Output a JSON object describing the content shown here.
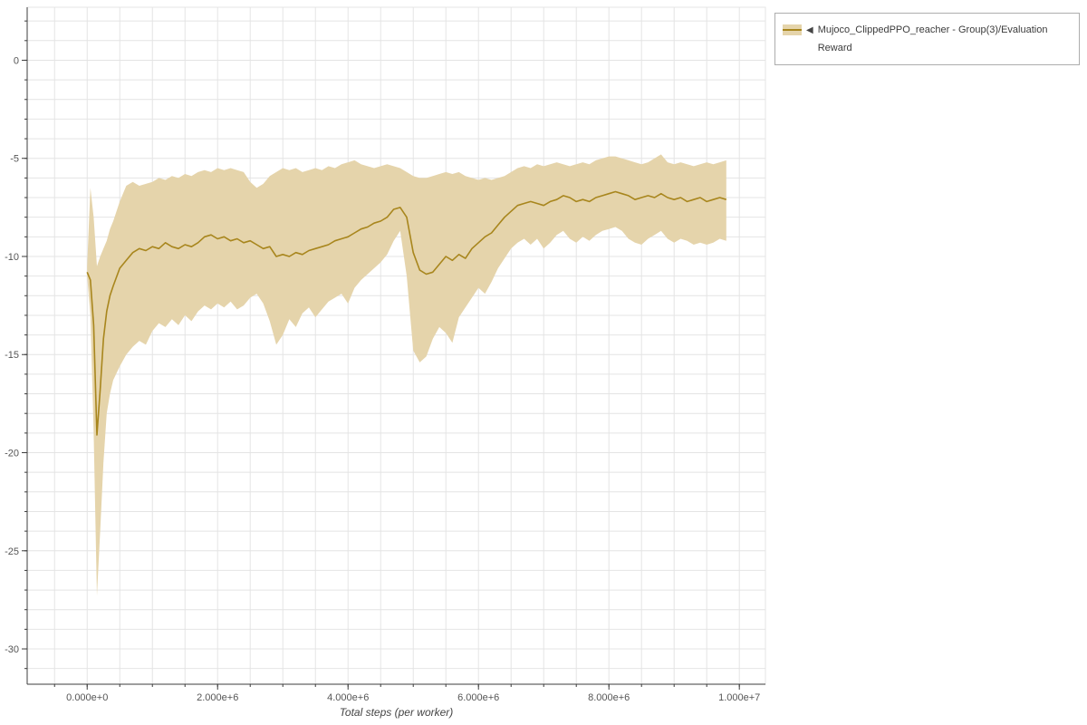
{
  "legend": {
    "marker": "◀",
    "label": "Mujoco_ClippedPPO_reacher - Group(3)/Evaluation Reward"
  },
  "chart_data": {
    "type": "line",
    "band": true,
    "title": "",
    "xlabel": "Total steps (per worker)",
    "ylabel": "",
    "x_scale": 1000000,
    "xlim": [
      -0.92,
      10.4
    ],
    "ylim": [
      -31.8,
      2.7
    ],
    "grid": {
      "x_step": 0.5,
      "y_step": 1
    },
    "x_tick_values": [
      0,
      2,
      4,
      6,
      8,
      10
    ],
    "x_tick_labels": [
      "0.000e+0",
      "2.000e+6",
      "4.000e+6",
      "6.000e+6",
      "8.000e+6",
      "1.000e+7"
    ],
    "y_tick_values": [
      0,
      -5,
      -10,
      -15,
      -20,
      -25,
      -30
    ],
    "y_tick_labels": [
      "0",
      "-5",
      "-10",
      "-15",
      "-20",
      "-25",
      "-30"
    ],
    "colors": {
      "line": "#a8861d",
      "band": "#e5d4ab",
      "grid": "#e4e4e4",
      "outline": "#e5e5e5",
      "axis": "#3c3c3c",
      "tick": "#555555"
    },
    "x": [
      0,
      0.05,
      0.1,
      0.15,
      0.2,
      0.25,
      0.3,
      0.35,
      0.4,
      0.5,
      0.6,
      0.7,
      0.8,
      0.9,
      1.0,
      1.1,
      1.2,
      1.3,
      1.4,
      1.5,
      1.6,
      1.7,
      1.8,
      1.9,
      2.0,
      2.1,
      2.2,
      2.3,
      2.4,
      2.5,
      2.6,
      2.7,
      2.8,
      2.9,
      3.0,
      3.1,
      3.2,
      3.3,
      3.4,
      3.5,
      3.6,
      3.7,
      3.8,
      3.9,
      4.0,
      4.1,
      4.2,
      4.3,
      4.4,
      4.5,
      4.6,
      4.7,
      4.8,
      4.9,
      5.0,
      5.1,
      5.2,
      5.3,
      5.4,
      5.5,
      5.6,
      5.7,
      5.8,
      5.9,
      6.0,
      6.1,
      6.2,
      6.3,
      6.4,
      6.5,
      6.6,
      6.7,
      6.8,
      6.9,
      7.0,
      7.1,
      7.2,
      7.3,
      7.4,
      7.5,
      7.6,
      7.7,
      7.8,
      7.9,
      8.0,
      8.1,
      8.2,
      8.3,
      8.4,
      8.5,
      8.6,
      8.7,
      8.8,
      8.9,
      9.0,
      9.1,
      9.2,
      9.3,
      9.4,
      9.5,
      9.6,
      9.7,
      9.8
    ],
    "series": {
      "mean": [
        -10.8,
        -11.2,
        -13.5,
        -19.1,
        -16.8,
        -14.2,
        -12.8,
        -12.0,
        -11.5,
        -10.6,
        -10.2,
        -9.8,
        -9.6,
        -9.7,
        -9.5,
        -9.6,
        -9.3,
        -9.5,
        -9.6,
        -9.4,
        -9.5,
        -9.3,
        -9.0,
        -8.9,
        -9.1,
        -9.0,
        -9.2,
        -9.1,
        -9.3,
        -9.2,
        -9.4,
        -9.6,
        -9.5,
        -10.0,
        -9.9,
        -10.0,
        -9.8,
        -9.9,
        -9.7,
        -9.6,
        -9.5,
        -9.4,
        -9.2,
        -9.1,
        -9.0,
        -8.8,
        -8.6,
        -8.5,
        -8.3,
        -8.2,
        -8.0,
        -7.6,
        -7.5,
        -8.0,
        -9.8,
        -10.7,
        -10.9,
        -10.8,
        -10.4,
        -10.0,
        -10.2,
        -9.9,
        -10.1,
        -9.6,
        -9.3,
        -9.0,
        -8.8,
        -8.4,
        -8.0,
        -7.7,
        -7.4,
        -7.3,
        -7.2,
        -7.3,
        -7.4,
        -7.2,
        -7.1,
        -6.9,
        -7.0,
        -7.2,
        -7.1,
        -7.2,
        -7.0,
        -6.9,
        -6.8,
        -6.7,
        -6.8,
        -6.9,
        -7.1,
        -7.0,
        -6.9,
        -7.0,
        -6.8,
        -7.0,
        -7.1,
        -7.0,
        -7.2,
        -7.1,
        -7.0,
        -7.2,
        -7.1,
        -7.0,
        -7.1
      ],
      "lower": [
        -11.0,
        -13.0,
        -19.0,
        -27.3,
        -24.0,
        -20.5,
        -18.0,
        -17.0,
        -16.3,
        -15.6,
        -15.0,
        -14.6,
        -14.3,
        -14.5,
        -13.8,
        -13.4,
        -13.6,
        -13.2,
        -13.5,
        -13.0,
        -13.3,
        -12.8,
        -12.5,
        -12.7,
        -12.4,
        -12.6,
        -12.3,
        -12.7,
        -12.5,
        -12.1,
        -11.9,
        -12.4,
        -13.3,
        -14.5,
        -14.0,
        -13.2,
        -13.6,
        -12.9,
        -12.6,
        -13.1,
        -12.7,
        -12.3,
        -12.1,
        -11.9,
        -12.4,
        -11.6,
        -11.2,
        -10.9,
        -10.6,
        -10.3,
        -9.9,
        -9.2,
        -8.7,
        -11.0,
        -14.8,
        -15.4,
        -15.1,
        -14.2,
        -13.6,
        -13.9,
        -14.4,
        -13.1,
        -12.6,
        -12.1,
        -11.6,
        -11.9,
        -11.3,
        -10.6,
        -10.1,
        -9.6,
        -9.3,
        -9.1,
        -9.4,
        -9.1,
        -9.6,
        -9.3,
        -8.9,
        -8.7,
        -9.1,
        -9.3,
        -9.0,
        -9.2,
        -8.9,
        -8.7,
        -8.6,
        -8.5,
        -8.7,
        -9.1,
        -9.3,
        -9.4,
        -9.1,
        -8.9,
        -8.7,
        -9.1,
        -9.3,
        -9.1,
        -9.2,
        -9.4,
        -9.3,
        -9.4,
        -9.3,
        -9.1,
        -9.2
      ],
      "upper": [
        -10.5,
        -6.5,
        -8.0,
        -10.5,
        -10.0,
        -9.6,
        -9.2,
        -8.6,
        -8.2,
        -7.2,
        -6.4,
        -6.2,
        -6.4,
        -6.3,
        -6.2,
        -6.0,
        -6.1,
        -5.9,
        -6.0,
        -5.8,
        -5.9,
        -5.7,
        -5.6,
        -5.7,
        -5.5,
        -5.6,
        -5.5,
        -5.6,
        -5.7,
        -6.2,
        -6.5,
        -6.3,
        -5.9,
        -5.7,
        -5.5,
        -5.6,
        -5.5,
        -5.7,
        -5.6,
        -5.5,
        -5.6,
        -5.4,
        -5.5,
        -5.3,
        -5.2,
        -5.1,
        -5.3,
        -5.4,
        -5.5,
        -5.4,
        -5.3,
        -5.4,
        -5.5,
        -5.7,
        -5.9,
        -6.0,
        -6.0,
        -5.9,
        -5.8,
        -5.7,
        -5.8,
        -5.7,
        -5.9,
        -6.0,
        -6.1,
        -6.0,
        -6.1,
        -6.0,
        -5.9,
        -5.7,
        -5.5,
        -5.4,
        -5.5,
        -5.3,
        -5.4,
        -5.3,
        -5.2,
        -5.3,
        -5.4,
        -5.3,
        -5.2,
        -5.3,
        -5.1,
        -5.0,
        -4.9,
        -4.9,
        -5.0,
        -5.1,
        -5.2,
        -5.3,
        -5.2,
        -5.0,
        -4.8,
        -5.2,
        -5.3,
        -5.2,
        -5.3,
        -5.4,
        -5.3,
        -5.2,
        -5.3,
        -5.2,
        -5.1
      ]
    },
    "legend_position": "top-right-outside"
  }
}
